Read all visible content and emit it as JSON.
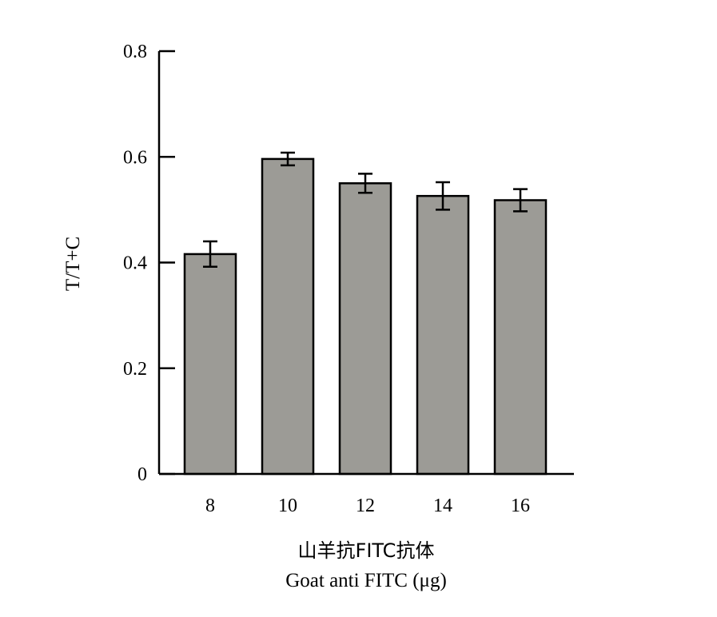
{
  "chart_data": {
    "type": "bar",
    "categories": [
      "8",
      "10",
      "12",
      "14",
      "16"
    ],
    "series": [
      {
        "values": [
          0.416,
          0.596,
          0.55,
          0.526,
          0.518
        ],
        "error": [
          0.024,
          0.012,
          0.018,
          0.026,
          0.021
        ]
      }
    ],
    "ylabel": "T/T+C",
    "xlabel_cn": "山羊抗FITC抗体",
    "xlabel_en": "Goat anti FITC (μg)",
    "ylim": [
      0,
      0.8
    ],
    "yticks": [
      "0",
      "0.2",
      "0.4",
      "0.6",
      "0.8"
    ],
    "ytick_values": [
      0,
      0.2,
      0.4,
      0.6,
      0.8
    ],
    "grid": false,
    "colors": {
      "bar_fill": "#9c9b96",
      "bar_stroke": "#000000",
      "axis": "#000000"
    }
  }
}
